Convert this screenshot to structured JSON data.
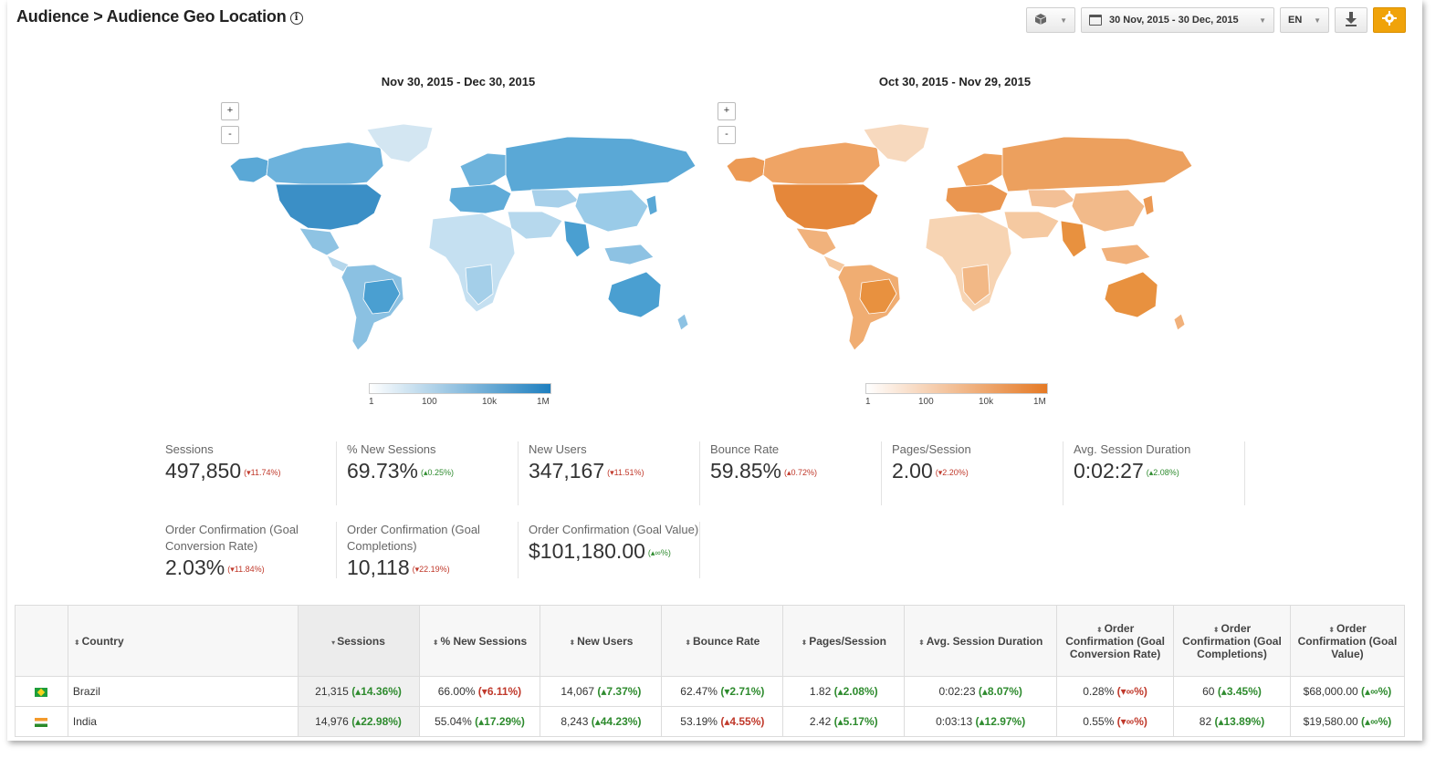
{
  "header": {
    "title": "Audience > Audience Geo Location",
    "date_range": "30 Nov, 2015 - 30 Dec, 2015",
    "language": "EN",
    "icons": {
      "info": "info-icon",
      "cube": "cube-icon",
      "calendar": "calendar-icon",
      "download": "download-icon",
      "settings": "gear-icon"
    }
  },
  "maps": {
    "current": {
      "title": "Nov 30, 2015 - Dec 30, 2015",
      "zoom_in": "+",
      "zoom_out": "-",
      "color": "#4a9fd1",
      "legend_ticks": [
        "1",
        "100",
        "10k",
        "1M"
      ]
    },
    "previous": {
      "title": "Oct 30, 2015 - Nov 29, 2015",
      "zoom_in": "+",
      "zoom_out": "-",
      "color": "#e88a3c",
      "legend_ticks": [
        "1",
        "100",
        "10k",
        "1M"
      ]
    }
  },
  "kpis": [
    {
      "label": "Sessions",
      "value": "497,850",
      "delta": "(▾11.74%)",
      "dir": "down"
    },
    {
      "label": "% New Sessions",
      "value": "69.73%",
      "delta": "(▴0.25%)",
      "dir": "up"
    },
    {
      "label": "New Users",
      "value": "347,167",
      "delta": "(▾11.51%)",
      "dir": "down"
    },
    {
      "label": "Bounce Rate",
      "value": "59.85%",
      "delta": "(▴0.72%)",
      "dir": "down"
    },
    {
      "label": "Pages/Session",
      "value": "2.00",
      "delta": "(▾2.20%)",
      "dir": "down"
    },
    {
      "label": "Avg. Session Duration",
      "value": "0:02:27",
      "delta": "(▴2.08%)",
      "dir": "up"
    },
    {
      "label": "Order Confirmation (Goal Conversion Rate)",
      "value": "2.03%",
      "delta": "(▾11.84%)",
      "dir": "down"
    },
    {
      "label": "Order Confirmation (Goal Completions)",
      "value": "10,118",
      "delta": "(▾22.19%)",
      "dir": "down"
    },
    {
      "label": "Order Confirmation (Goal Value)",
      "value": "$101,180.00",
      "delta": "(▴∞%)",
      "dir": "up"
    }
  ],
  "table": {
    "headers": [
      "Country",
      "Sessions",
      "% New Sessions",
      "New Users",
      "Bounce Rate",
      "Pages/Session",
      "Avg. Session Duration",
      "Order Confirmation (Goal Conversion Rate)",
      "Order Confirmation (Goal Completions)",
      "Order Confirmation (Goal Value)"
    ],
    "rows": [
      {
        "flag": "brazil-flag-icon",
        "country": "Brazil",
        "cells": [
          {
            "v": "21,315",
            "d": "(▴14.36%)",
            "dir": "up"
          },
          {
            "v": "66.00%",
            "d": "(▾6.11%)",
            "dir": "down"
          },
          {
            "v": "14,067",
            "d": "(▴7.37%)",
            "dir": "up"
          },
          {
            "v": "62.47%",
            "d": "(▾2.71%)",
            "dir": "up"
          },
          {
            "v": "1.82",
            "d": "(▴2.08%)",
            "dir": "up"
          },
          {
            "v": "0:02:23",
            "d": "(▴8.07%)",
            "dir": "up"
          },
          {
            "v": "0.28%",
            "d": "(▾∞%)",
            "dir": "down"
          },
          {
            "v": "60",
            "d": "(▴3.45%)",
            "dir": "up"
          },
          {
            "v": "$68,000.00",
            "d": "(▴∞%)",
            "dir": "up"
          }
        ]
      },
      {
        "flag": "india-flag-icon",
        "country": "India",
        "cells": [
          {
            "v": "14,976",
            "d": "(▴22.98%)",
            "dir": "up"
          },
          {
            "v": "55.04%",
            "d": "(▴17.29%)",
            "dir": "up"
          },
          {
            "v": "8,243",
            "d": "(▴44.23%)",
            "dir": "up"
          },
          {
            "v": "53.19%",
            "d": "(▴4.55%)",
            "dir": "down"
          },
          {
            "v": "2.42",
            "d": "(▴5.17%)",
            "dir": "up"
          },
          {
            "v": "0:03:13",
            "d": "(▴12.97%)",
            "dir": "up"
          },
          {
            "v": "0.55%",
            "d": "(▾∞%)",
            "dir": "down"
          },
          {
            "v": "82",
            "d": "(▴13.89%)",
            "dir": "up"
          },
          {
            "v": "$19,580.00",
            "d": "(▴∞%)",
            "dir": "up"
          }
        ]
      }
    ]
  }
}
